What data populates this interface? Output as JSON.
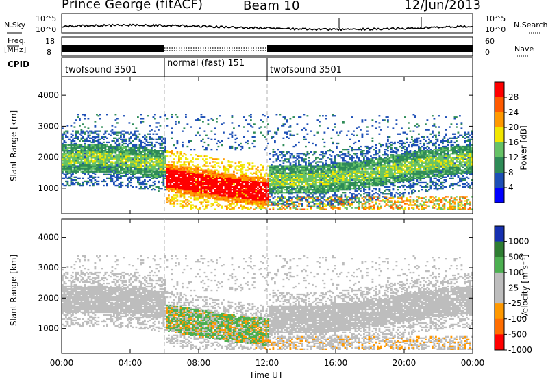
{
  "header": {
    "station": "Prince George (fitACF)",
    "beam": "Beam 10",
    "date": "12/Jun/2013"
  },
  "top_panels": {
    "nsky_label": "N.Sky",
    "nsky_ticks": [
      "10^5",
      "10^0"
    ],
    "nsearch_label": "N.Search",
    "nsearch_ticks": [
      "10^5",
      "10^0"
    ],
    "freq_label_1": "Freq.",
    "freq_label_2": "[MHz]",
    "freq_ticks": [
      "18",
      "8"
    ],
    "nave_label": "Nave",
    "nave_ticks": [
      "60",
      "0"
    ],
    "cpid_label": "CPID",
    "cpid_segments": [
      {
        "label": "twofsound 3501",
        "start": 0,
        "end": 6
      },
      {
        "label": "normal (fast) 151",
        "start": 6,
        "end": 12
      },
      {
        "label": "twofsound 3501",
        "start": 12,
        "end": 24
      }
    ]
  },
  "x_axis": {
    "label": "Time UT",
    "ticks": [
      "00:00",
      "04:00",
      "08:00",
      "12:00",
      "16:00",
      "20:00",
      "00:00"
    ],
    "range_hours": [
      0,
      24
    ]
  },
  "chart_data": [
    {
      "type": "heatmap",
      "ylabel": "Slant Range [km]",
      "ylim": [
        180,
        4600
      ],
      "yticks": [
        "4000",
        "3000",
        "2000",
        "1000"
      ],
      "colorbar_label": "Power [dB]",
      "colorbar_ticks": [
        "28",
        "24",
        "20",
        "16",
        "12",
        "8",
        "4"
      ],
      "colorbar_colors": [
        "#0000ff",
        "#1d4fb6",
        "#2e8b57",
        "#66c266",
        "#f2e600",
        "#ff9900",
        "#ff5a00",
        "#ff0000"
      ],
      "bands": [
        {
          "t": [
            0,
            24
          ],
          "range": [
            1100,
            2500
          ],
          "level": "8-16 dB"
        },
        {
          "t": [
            6,
            12
          ],
          "range": [
            700,
            1600
          ],
          "level": "24-28 dB"
        },
        {
          "t": [
            12,
            24
          ],
          "range": [
            350,
            700
          ],
          "level": "12-24 dB"
        }
      ]
    },
    {
      "type": "heatmap",
      "ylabel": "Slant Range [km]",
      "ylim": [
        180,
        4600
      ],
      "yticks": [
        "4000",
        "3000",
        "2000",
        "1000"
      ],
      "colorbar_label": "Velocity [m s⁻¹]",
      "colorbar_ticks": [
        "1000",
        "500",
        "100",
        "25",
        "-25",
        "-100",
        "-500",
        "-1000"
      ],
      "colorbar_colors": [
        "#1630b0",
        "#2e7d32",
        "#4caf50",
        "#bdbdbd",
        "#bdbdbd",
        "#ff9800",
        "#ff6d00",
        "#ff0000"
      ],
      "bands": [
        {
          "t": [
            0,
            24
          ],
          "range": [
            1100,
            2500
          ],
          "level": "ground scatter (grey)"
        },
        {
          "t": [
            6.5,
            11.5
          ],
          "range": [
            800,
            1500
          ],
          "level": "+100 to +500 (green)"
        },
        {
          "t": [
            6,
            7.5
          ],
          "range": [
            700,
            1100
          ],
          "level": "-100 to -500 (orange)"
        }
      ]
    }
  ],
  "colors": {
    "frame": "#000000",
    "divider": "#b0b0b0"
  }
}
